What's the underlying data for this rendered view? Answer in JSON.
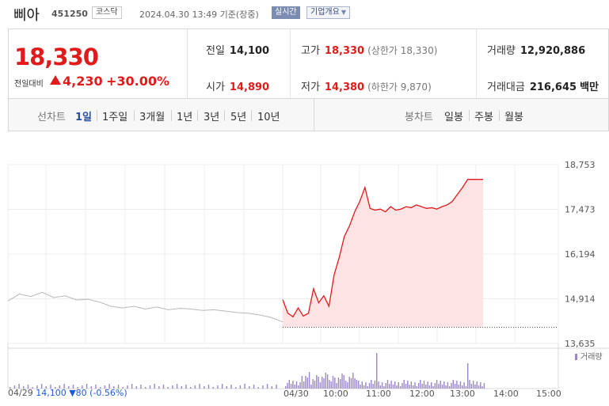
{
  "header": {
    "name": "삐아",
    "code": "451250",
    "market": "코스닥",
    "timestamp": "2024.04.30 13:49 기준(장중)",
    "realtime": "실시간",
    "company_info": "기업개요"
  },
  "summary": {
    "price": "18,330",
    "change_label": "전일대비",
    "change_amount": "4,230",
    "change_rate": "+30.00%",
    "stats": {
      "prev_close": {
        "label": "전일",
        "value": "14,100"
      },
      "open": {
        "label": "시가",
        "value": "14,890"
      },
      "high": {
        "label": "고가",
        "value": "18,330",
        "sub": "(상한가 18,330)"
      },
      "low": {
        "label": "저가",
        "value": "14,380",
        "sub": "(하한가 9,870)"
      },
      "volume": {
        "label": "거래량",
        "value": "12,920,886"
      },
      "trade_value": {
        "label": "거래대금",
        "value": "216,645",
        "unit": "백만"
      }
    }
  },
  "tabs": {
    "line_label": "선차트",
    "line_tabs": [
      "1일",
      "1주일",
      "3개월",
      "1년",
      "3년",
      "5년",
      "10년"
    ],
    "active": "1일",
    "candle_label": "봉차트",
    "candle_tabs": [
      "일봉",
      "주봉",
      "월봉"
    ]
  },
  "chart_data": {
    "type": "line",
    "ylim": [
      13635,
      18753
    ],
    "y_ticks": [
      "18,753",
      "17,473",
      "16,194",
      "14,914",
      "13,635"
    ],
    "x_ticks": [
      "04/29",
      "04/30",
      "10:00",
      "11:00",
      "12:00",
      "13:00",
      "14:00",
      "15:00"
    ],
    "reference_price": 14100,
    "series": [
      {
        "values": [
          14850,
          15050,
          14980,
          15100,
          14950,
          15000,
          14880,
          14900,
          14820,
          14700,
          14650,
          14700,
          14620,
          14680,
          14600,
          14640,
          14620,
          14580,
          14600,
          14560,
          14520,
          14500,
          14450,
          14380,
          14250
        ]
      },
      {
        "values": [
          14890,
          14500,
          14400,
          14650,
          14420,
          14500,
          15200,
          14800,
          15000,
          14700,
          15600,
          16100,
          16700,
          17000,
          17400,
          17700,
          18100,
          17500,
          17450,
          17480,
          17400,
          17550,
          17450,
          17480,
          17550,
          17520,
          17600,
          17550,
          17500,
          17520,
          17480,
          17550,
          17600,
          17700,
          17900,
          18100,
          18330,
          18330,
          18330,
          18330
        ]
      }
    ],
    "volume_label": "거래량",
    "colors": {
      "up": "#e01b1b",
      "down": "#1e5bd6",
      "prev_line": "#b8b8b8",
      "volume": "#9a86c8",
      "fill": "#fde3e3"
    }
  },
  "footer": {
    "prev_label": "04/29",
    "prev_price": "14,100",
    "prev_change": "▼80",
    "prev_rate": "(-0.56%)"
  }
}
